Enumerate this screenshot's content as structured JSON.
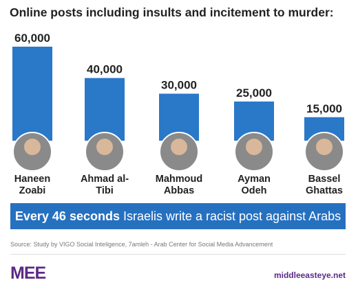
{
  "chart_data": {
    "type": "bar",
    "title": "Online posts including insults and incitement to murder:",
    "categories": [
      "Haneen Zoabi",
      "Ahmad al-Tibi",
      "Mahmoud Abbas",
      "Ayman Odeh",
      "Bassel Ghattas"
    ],
    "values": [
      60000,
      40000,
      30000,
      25000,
      15000
    ],
    "value_labels": [
      "60,000",
      "40,000",
      "30,000",
      "25,000",
      "15,000"
    ],
    "color": "#2a78c8"
  },
  "banner": {
    "emphasis": "Every 46 seconds",
    "text": "Israelis write a racist post against Arabs"
  },
  "source": "Source: Study by VIGO Social Inteligence, 7amleh - Arab Center for Social Media Advancement",
  "footer": {
    "logo": "MEE",
    "site": "middleeasteye.net"
  }
}
